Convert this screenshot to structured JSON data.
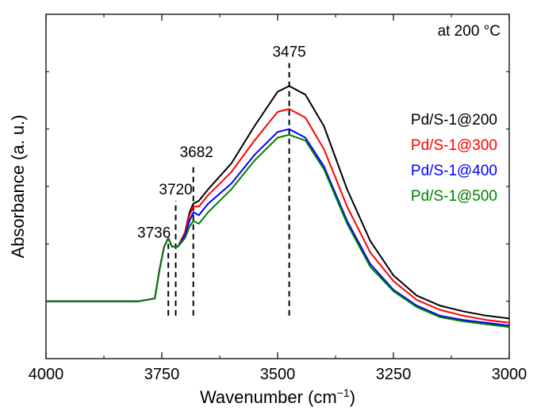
{
  "chart_data": {
    "type": "line",
    "condition_label": "at 200",
    "condition_unit": "°C",
    "xlabel_main": "Wavenumber (cm",
    "xlabel_exp": "−1",
    "xlabel_close": ")",
    "ylabel": "Absorbance (a. u.)",
    "xlim": [
      4000,
      3000
    ],
    "ylim": [
      -0.15,
      1.05
    ],
    "x_ticks": [
      4000,
      3750,
      3500,
      3250,
      3000
    ],
    "x_tick_labels": [
      "4000",
      "3750",
      "3500",
      "3250",
      "3000"
    ],
    "peak_markers": [
      {
        "x": 3736,
        "label": "3736",
        "y_top": 0.25
      },
      {
        "x": 3720,
        "label": "3720",
        "y_top": 0.4
      },
      {
        "x": 3682,
        "label": "3682",
        "y_top": 0.53
      },
      {
        "x": 3475,
        "label": "3475",
        "y_top": 0.88
      }
    ],
    "series": [
      {
        "name": "Pd/S-1@200",
        "color": "#000000",
        "points": [
          [
            4000,
            0.05
          ],
          [
            3900,
            0.05
          ],
          [
            3800,
            0.05
          ],
          [
            3765,
            0.06
          ],
          [
            3755,
            0.16
          ],
          [
            3745,
            0.24
          ],
          [
            3736,
            0.27
          ],
          [
            3728,
            0.24
          ],
          [
            3715,
            0.24
          ],
          [
            3700,
            0.29
          ],
          [
            3690,
            0.36
          ],
          [
            3682,
            0.39
          ],
          [
            3670,
            0.4
          ],
          [
            3650,
            0.44
          ],
          [
            3600,
            0.53
          ],
          [
            3550,
            0.66
          ],
          [
            3500,
            0.78
          ],
          [
            3475,
            0.8
          ],
          [
            3440,
            0.77
          ],
          [
            3400,
            0.66
          ],
          [
            3350,
            0.44
          ],
          [
            3300,
            0.26
          ],
          [
            3250,
            0.14
          ],
          [
            3200,
            0.07
          ],
          [
            3150,
            0.035
          ],
          [
            3100,
            0.015
          ],
          [
            3050,
            0.0
          ],
          [
            3000,
            -0.01
          ]
        ]
      },
      {
        "name": "Pd/S-1@300",
        "color": "#ff0000",
        "points": [
          [
            4000,
            0.05
          ],
          [
            3900,
            0.05
          ],
          [
            3800,
            0.05
          ],
          [
            3765,
            0.06
          ],
          [
            3755,
            0.16
          ],
          [
            3745,
            0.24
          ],
          [
            3736,
            0.27
          ],
          [
            3728,
            0.24
          ],
          [
            3715,
            0.24
          ],
          [
            3700,
            0.29
          ],
          [
            3690,
            0.35
          ],
          [
            3682,
            0.38
          ],
          [
            3670,
            0.38
          ],
          [
            3650,
            0.42
          ],
          [
            3600,
            0.5
          ],
          [
            3550,
            0.61
          ],
          [
            3500,
            0.71
          ],
          [
            3475,
            0.72
          ],
          [
            3440,
            0.69
          ],
          [
            3400,
            0.58
          ],
          [
            3350,
            0.38
          ],
          [
            3300,
            0.22
          ],
          [
            3250,
            0.12
          ],
          [
            3200,
            0.055
          ],
          [
            3150,
            0.02
          ],
          [
            3100,
            0.0
          ],
          [
            3050,
            -0.015
          ],
          [
            3000,
            -0.025
          ]
        ]
      },
      {
        "name": "Pd/S-1@400",
        "color": "#0000ff",
        "points": [
          [
            4000,
            0.05
          ],
          [
            3900,
            0.05
          ],
          [
            3800,
            0.05
          ],
          [
            3765,
            0.06
          ],
          [
            3755,
            0.16
          ],
          [
            3745,
            0.24
          ],
          [
            3736,
            0.27
          ],
          [
            3728,
            0.24
          ],
          [
            3715,
            0.24
          ],
          [
            3700,
            0.28
          ],
          [
            3690,
            0.33
          ],
          [
            3682,
            0.36
          ],
          [
            3670,
            0.35
          ],
          [
            3650,
            0.39
          ],
          [
            3600,
            0.46
          ],
          [
            3550,
            0.56
          ],
          [
            3500,
            0.64
          ],
          [
            3475,
            0.65
          ],
          [
            3440,
            0.62
          ],
          [
            3400,
            0.52
          ],
          [
            3350,
            0.33
          ],
          [
            3300,
            0.18
          ],
          [
            3250,
            0.09
          ],
          [
            3200,
            0.035
          ],
          [
            3150,
            0.0
          ],
          [
            3100,
            -0.015
          ],
          [
            3050,
            -0.025
          ],
          [
            3000,
            -0.035
          ]
        ]
      },
      {
        "name": "Pd/S-1@500",
        "color": "#008000",
        "points": [
          [
            4000,
            0.05
          ],
          [
            3900,
            0.05
          ],
          [
            3800,
            0.05
          ],
          [
            3765,
            0.06
          ],
          [
            3755,
            0.16
          ],
          [
            3745,
            0.24
          ],
          [
            3736,
            0.27
          ],
          [
            3728,
            0.24
          ],
          [
            3715,
            0.24
          ],
          [
            3700,
            0.27
          ],
          [
            3690,
            0.31
          ],
          [
            3682,
            0.33
          ],
          [
            3670,
            0.32
          ],
          [
            3650,
            0.36
          ],
          [
            3600,
            0.44
          ],
          [
            3550,
            0.54
          ],
          [
            3500,
            0.62
          ],
          [
            3475,
            0.63
          ],
          [
            3440,
            0.61
          ],
          [
            3400,
            0.51
          ],
          [
            3350,
            0.32
          ],
          [
            3300,
            0.17
          ],
          [
            3250,
            0.085
          ],
          [
            3200,
            0.03
          ],
          [
            3150,
            -0.005
          ],
          [
            3100,
            -0.02
          ],
          [
            3050,
            -0.03
          ],
          [
            3000,
            -0.04
          ]
        ]
      }
    ]
  }
}
